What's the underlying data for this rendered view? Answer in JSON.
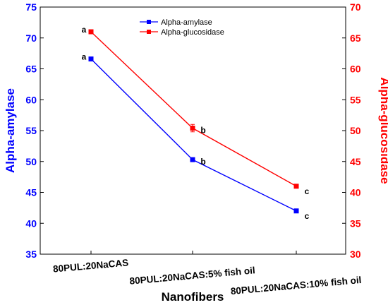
{
  "chart_data": {
    "type": "line",
    "title": "",
    "xlabel": "Nanofibers",
    "ylabel_left": "Alpha-amylase",
    "ylabel_right": "Alpha-glucosidase",
    "categories": [
      "80PUL:20NaCAS",
      "80PUL:20NaCAS:5% fish oil",
      "80PUL:20NaCAS:10% fish oil"
    ],
    "ylim_left": [
      35,
      75
    ],
    "ylim_right": [
      30,
      70
    ],
    "yticks_left": [
      "35",
      "40",
      "45",
      "50",
      "55",
      "60",
      "65",
      "70",
      "75"
    ],
    "yticks_right": [
      "30",
      "35",
      "40",
      "45",
      "50",
      "55",
      "60",
      "65",
      "70"
    ],
    "grid": false,
    "legend_position": "top-center",
    "series": [
      {
        "name": "Alpha-amylase",
        "axis": "left",
        "color": "#0000ff",
        "values": [
          66.6,
          50.3,
          42.0
        ],
        "labels": [
          "a",
          "b",
          "c"
        ]
      },
      {
        "name": "Alpha-glucosidase",
        "axis": "right",
        "color": "#ff0000",
        "values": [
          66.0,
          50.4,
          41.0
        ],
        "errors": [
          0.3,
          0.6,
          0.2
        ],
        "labels": [
          "a",
          "b",
          "c"
        ]
      }
    ]
  }
}
